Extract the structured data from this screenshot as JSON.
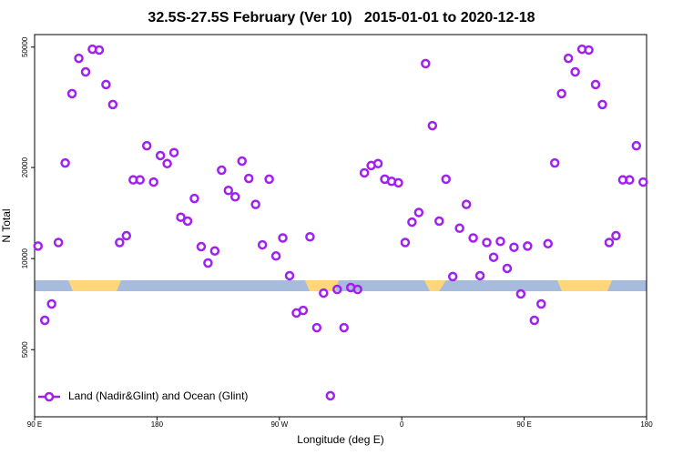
{
  "chart_data": {
    "type": "scatter",
    "title": "32.5S-27.5S February (Ver 10)   2015-01-01 to 2020-12-18",
    "x_label": "Longitude (deg E)",
    "y_label": "N Total",
    "xlim": [
      90,
      540
    ],
    "xticks": [
      {
        "value": 90,
        "label": "90 E"
      },
      180,
      {
        "value": 270,
        "label": "90 W"
      },
      {
        "value": 360,
        "label": "0"
      },
      {
        "value": 450,
        "label": "90 E"
      },
      {
        "value": 540,
        "label": "180"
      }
    ],
    "ylim": [
      3000,
      55000
    ],
    "yticks": [
      5000,
      10000,
      20000,
      50000
    ],
    "log_y": true,
    "legend_position": "bottom-left",
    "series": [
      {
        "name": "Land (Nadir&Glint) and Ocean (Glint)",
        "color": "#a020f0",
        "x": [
          92.5,
          97.5,
          102.5,
          107.5,
          112.5,
          117.5,
          122.5,
          127.5,
          132.5,
          137.5,
          142.5,
          147.5,
          152.5,
          157.5,
          162.5,
          167.5,
          172.5,
          177.5,
          182.5,
          187.5,
          192.5,
          197.5,
          202.5,
          207.5,
          212.5,
          217.5,
          222.5,
          227.5,
          232.5,
          237.5,
          242.5,
          247.5,
          252.5,
          257.5,
          262.5,
          267.5,
          272.5,
          277.5,
          282.5,
          287.5,
          292.5,
          297.5,
          302.5,
          307.5,
          312.5,
          317.5,
          322.5,
          327.5,
          332.5,
          337.5,
          342.5,
          347.5,
          352.5,
          357.5,
          362.5,
          367.5,
          372.5,
          377.5,
          382.5,
          387.5,
          392.5,
          397.5,
          402.5,
          407.5,
          412.5,
          417.5,
          422.5,
          427.5,
          432.5,
          437.5,
          442.5,
          447.5,
          452.5,
          457.5,
          462.5,
          467.5,
          472.5,
          477.5,
          482.5,
          487.5,
          492.5,
          497.5,
          502.5,
          507.5,
          512.5,
          517.5,
          522.5,
          527.5,
          532.5,
          537.5
        ],
        "values": [
          11000,
          6250,
          7080,
          11300,
          20700,
          35100,
          45900,
          41400,
          49200,
          48900,
          37600,
          32300,
          11300,
          11900,
          18200,
          18200,
          23600,
          17900,
          21900,
          20600,
          22400,
          13700,
          13300,
          15800,
          10950,
          9670,
          10600,
          19600,
          16800,
          16000,
          21000,
          18400,
          15100,
          11100,
          18300,
          10200,
          11700,
          8780,
          6610,
          6740,
          11800,
          5910,
          7690,
          3520,
          7910,
          5910,
          8020,
          7910,
          19200,
          20300,
          20600,
          18300,
          18000,
          17800,
          11300,
          13200,
          14200,
          44100,
          27500,
          13300,
          18300,
          8720,
          12600,
          15100,
          11700,
          8780,
          11300,
          10100,
          11400,
          9280,
          10900,
          7640,
          11000,
          6250,
          7080,
          11200,
          20700,
          35100,
          45900,
          41400,
          49200,
          48900,
          37600,
          32300,
          11300,
          11900,
          18200,
          18200,
          23600,
          17900
        ]
      }
    ]
  }
}
